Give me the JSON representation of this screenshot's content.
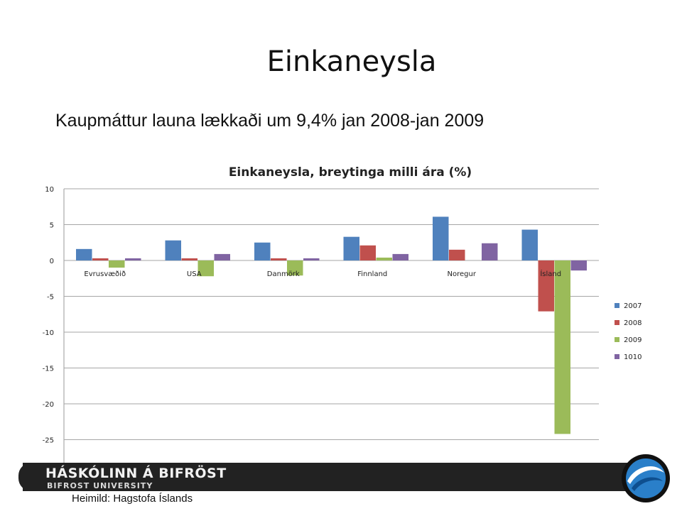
{
  "slide": {
    "title": "Einkaneysla",
    "subtitle": "Kaupmáttur launa lækkaði um 9,4% jan 2008-jan 2009",
    "source": "Heimild: Hagstofa Íslands"
  },
  "footer": {
    "brand_name": "HÁSKÓLINN Á BIFRÖST",
    "brand_sub": "BIFROST UNIVERSITY",
    "band_color": "#222222",
    "logo_color": "#1f77c4"
  },
  "chart_data": {
    "type": "bar",
    "title": "Einkaneysla, breytinga milli ára (%)",
    "xlabel": "",
    "ylabel": "",
    "categories": [
      "Evrusvæðið",
      "USA",
      "Danmörk",
      "Finnland",
      "Noregur",
      "Ísland"
    ],
    "series": [
      {
        "name": "2007",
        "color": "#4f81bd",
        "values": [
          1.6,
          2.8,
          2.5,
          3.3,
          6.1,
          4.3
        ]
      },
      {
        "name": "2008",
        "color": "#c0504d",
        "values": [
          0.3,
          0.3,
          0.3,
          2.1,
          1.5,
          -7.1
        ]
      },
      {
        "name": "2009",
        "color": "#9bbb59",
        "values": [
          -1.0,
          -2.2,
          -2.1,
          0.4,
          0.0,
          -24.2
        ]
      },
      {
        "name": "1010",
        "color": "#8064a2",
        "values": [
          0.3,
          0.9,
          0.3,
          0.9,
          2.4,
          -1.4
        ]
      }
    ],
    "ylim": [
      -30,
      10
    ],
    "yticks": [
      10,
      5,
      0,
      -5,
      -10,
      -15,
      -20,
      -25
    ],
    "grid": true,
    "legend_position": "right"
  }
}
